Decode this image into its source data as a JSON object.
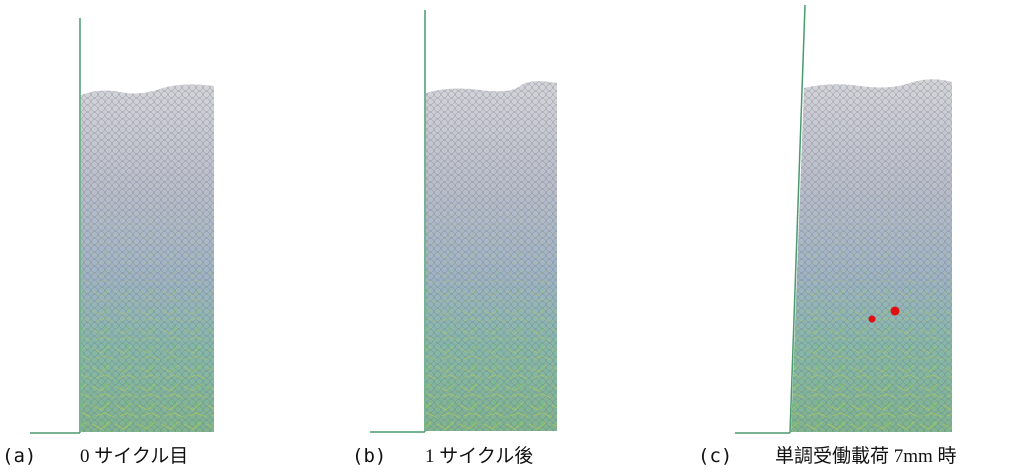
{
  "panels": [
    {
      "label": "(a)",
      "caption": "0 サイクル目"
    },
    {
      "label": "(b)",
      "caption": "1 サイクル後"
    },
    {
      "label": "(c)",
      "caption": "単調受働載荷 7mm 時"
    }
  ]
}
